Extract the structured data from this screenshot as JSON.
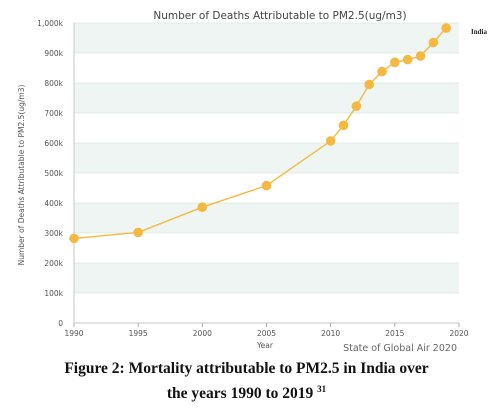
{
  "chart_data": {
    "type": "line",
    "title": "Number of Deaths Attributable to PM2.5(ug/m3)",
    "xlabel": "Year",
    "ylabel": "Number of Deaths Attributable to PM2.5(ug/m3)",
    "x": [
      1990,
      1995,
      2000,
      2005,
      2010,
      2011,
      2012,
      2013,
      2014,
      2015,
      2016,
      2017,
      2018,
      2019
    ],
    "series": [
      {
        "name": "India",
        "values": [
          282000,
          302000,
          386000,
          458000,
          607000,
          659000,
          723000,
          795000,
          838000,
          869000,
          878000,
          890000,
          935000,
          983000
        ]
      }
    ],
    "xlim": [
      1990,
      2019
    ],
    "ylim": [
      0,
      1000000
    ],
    "x_ticks": [
      "1990",
      "1995",
      "2000",
      "2005",
      "2010",
      "2015",
      "2020"
    ],
    "x_tick_values": [
      1990,
      1995,
      2000,
      2005,
      2010,
      2015,
      2020
    ],
    "y_ticks": [
      "0",
      "100k",
      "200k",
      "300k",
      "400k",
      "500k",
      "600k",
      "700k",
      "800k",
      "900k",
      "1,000k"
    ],
    "legend_position": "top-right",
    "grid": true,
    "colors": {
      "line": "#f5b942",
      "band": "#eef5f3",
      "gridline": "#dde6e4"
    }
  },
  "source_text": "State of Global Air 2020",
  "caption": {
    "line1": "Figure 2: Mortality attributable to PM2.5 in India over",
    "line2": "the years 1990 to 2019",
    "ref": "31"
  }
}
